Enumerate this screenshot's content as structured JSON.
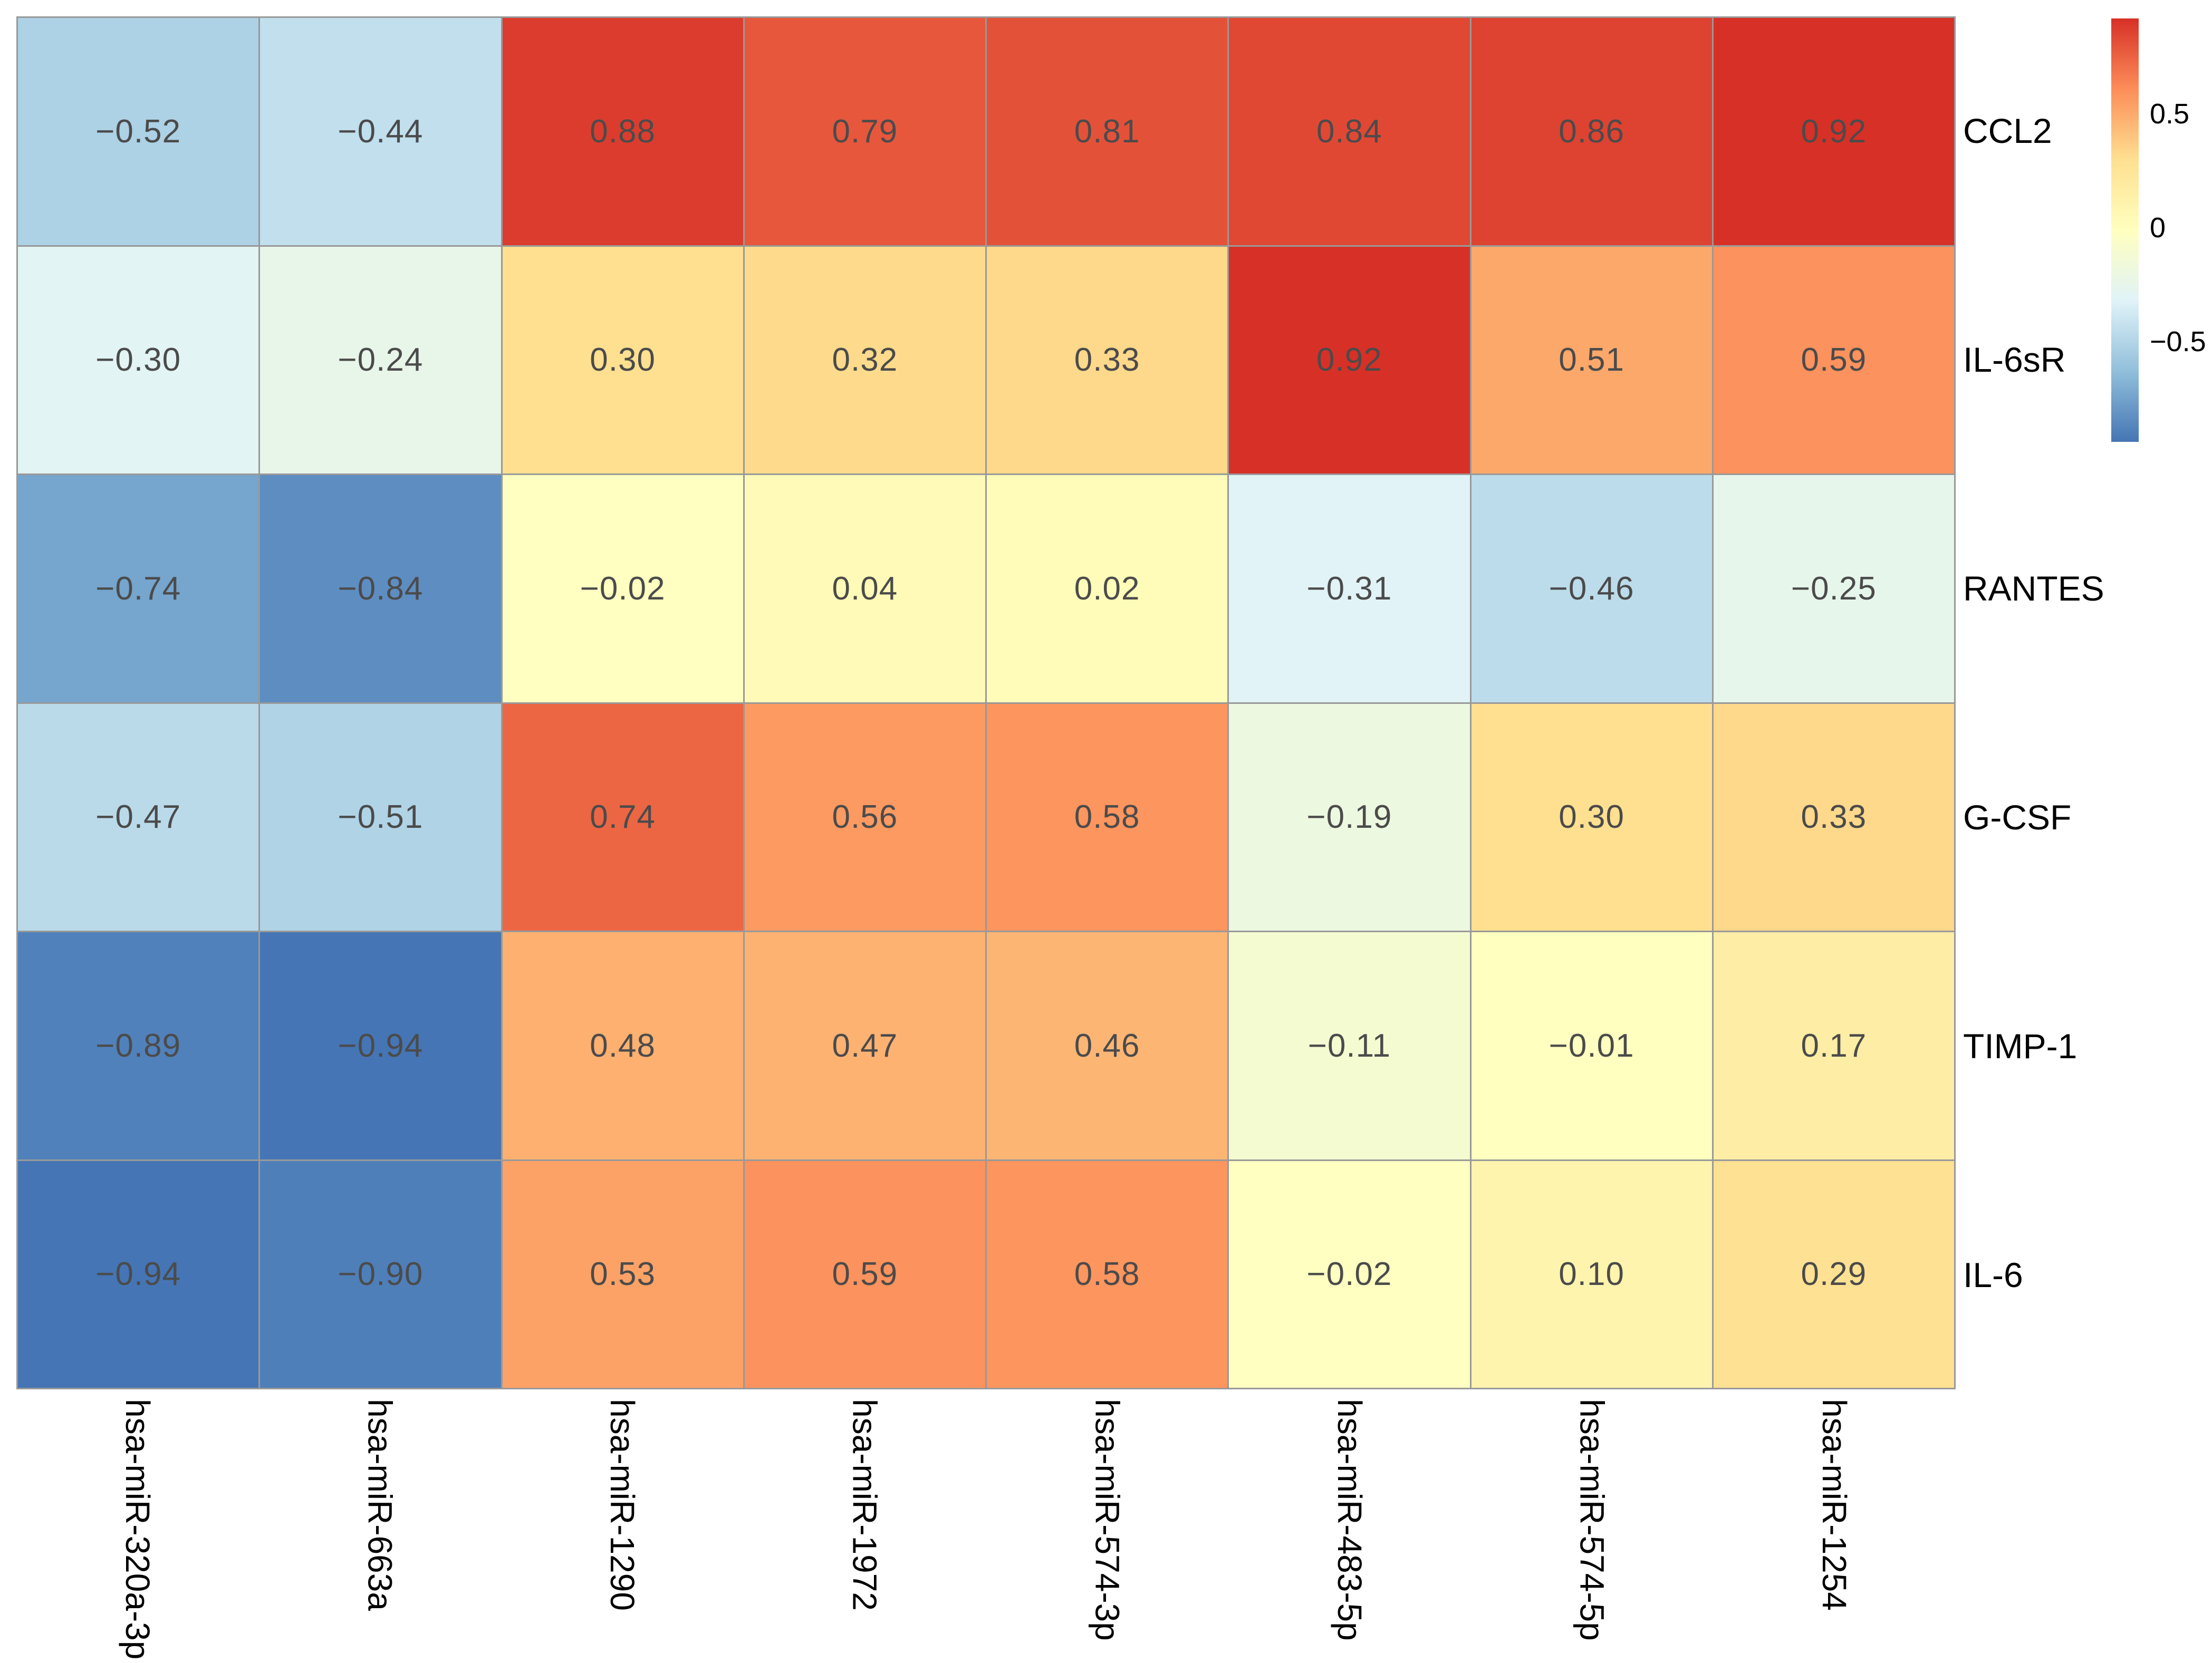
{
  "figure": {
    "background": "#ffffff",
    "grid_line_color": "#999999",
    "value_text_color": "#4b4b4b",
    "label_text_color": "#000000"
  },
  "chart_data": {
    "type": "heatmap",
    "title": "",
    "xlabel": "",
    "ylabel": "",
    "columns": [
      "hsa-miR-320a-3p",
      "hsa-miR-663a",
      "hsa-miR-1290",
      "hsa-miR-1972",
      "hsa-miR-574-3p",
      "hsa-miR-483-5p",
      "hsa-miR-574-5p",
      "hsa-miR-1254"
    ],
    "rows": [
      "CCL2",
      "IL-6sR",
      "RANTES",
      "G-CSF",
      "TIMP-1",
      "IL-6"
    ],
    "values": [
      [
        -0.52,
        -0.44,
        0.88,
        0.79,
        0.81,
        0.84,
        0.86,
        0.92
      ],
      [
        -0.3,
        -0.24,
        0.3,
        0.32,
        0.33,
        0.92,
        0.51,
        0.59
      ],
      [
        -0.74,
        -0.84,
        -0.02,
        0.04,
        0.02,
        -0.31,
        -0.46,
        -0.25
      ],
      [
        -0.47,
        -0.51,
        0.74,
        0.56,
        0.58,
        -0.19,
        0.3,
        0.33
      ],
      [
        -0.89,
        -0.94,
        0.48,
        0.47,
        0.46,
        -0.11,
        -0.01,
        0.17
      ],
      [
        -0.94,
        -0.9,
        0.53,
        0.59,
        0.58,
        -0.02,
        0.1,
        0.29
      ]
    ],
    "value_decimals": 2,
    "grid": true,
    "legend_position": "top-right",
    "colorbar": {
      "tick_labels": [
        "0.5",
        "0",
        "−0.5"
      ],
      "tick_values": [
        0.5,
        0,
        -0.5
      ]
    },
    "colormap": {
      "name": "RdYlBu-reversed",
      "stops": [
        "#4575b4",
        "#91bfdb",
        "#e0f3f8",
        "#ffffbf",
        "#fee090",
        "#fc8d59",
        "#d73027"
      ],
      "domain_min": -0.94,
      "domain_max": 0.92
    }
  }
}
